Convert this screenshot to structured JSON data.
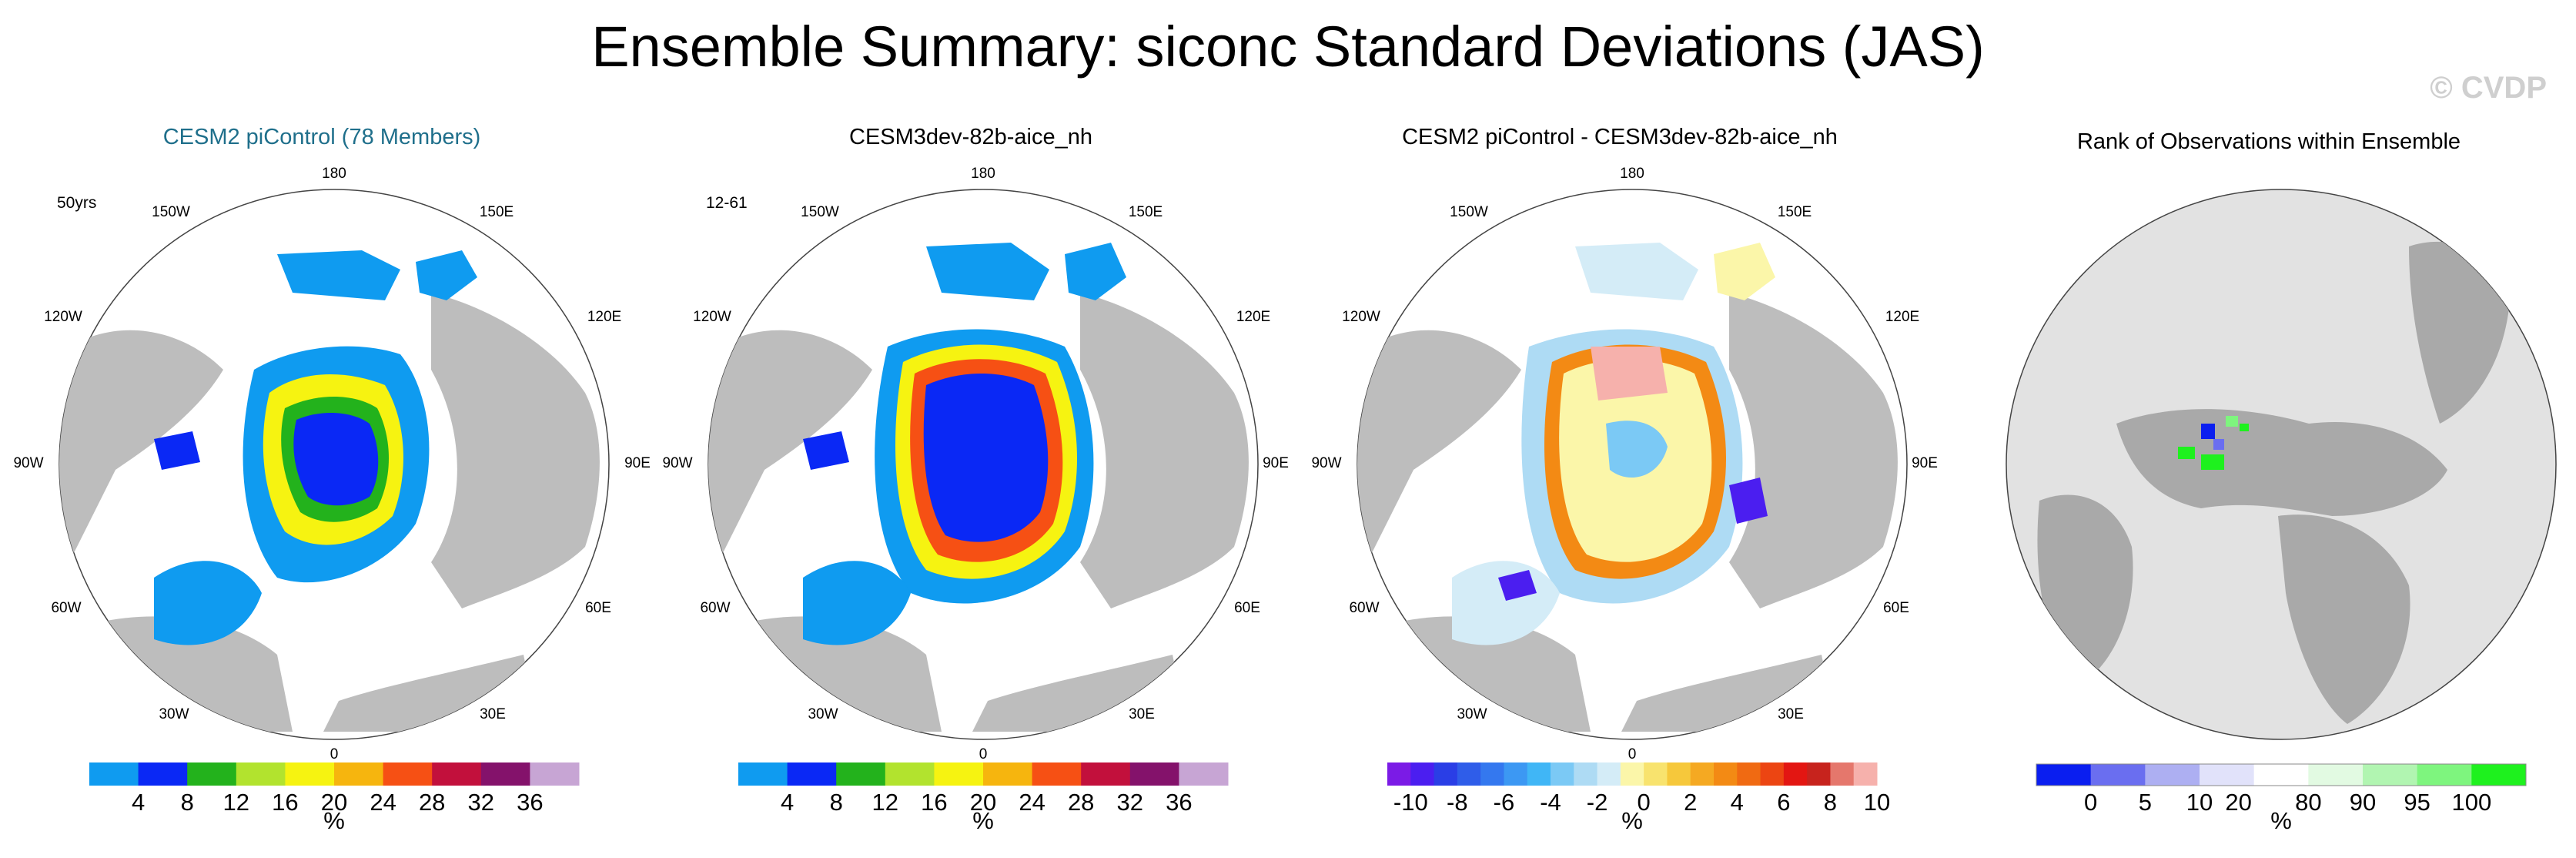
{
  "title": "Ensemble Summary: siconc Standard Deviations (JAS)",
  "watermark": "© CVDP",
  "lon_labels": {
    "l180": "180",
    "l150w": "150W",
    "l150e": "150E",
    "l120w": "120W",
    "l120e": "120E",
    "l90w": "90W",
    "l90e": "90E",
    "l60w": "60W",
    "l60e": "60E",
    "l30w": "30W",
    "l30e": "30E",
    "l0": "0"
  },
  "chart_data": [
    {
      "type": "heatmap",
      "title": "CESM2 piControl (78 Members)",
      "period": "50yrs",
      "unit": "%",
      "colorbar": {
        "colors": [
          "#0f9bf0",
          "#0a28f5",
          "#23b21c",
          "#b2e32e",
          "#f6f311",
          "#f6b50e",
          "#f65014",
          "#c2103c",
          "#84126b",
          "#c7a5d4"
        ],
        "tick_labels": [
          "4",
          "8",
          "12",
          "16",
          "20",
          "24",
          "28",
          "32",
          "36"
        ]
      }
    },
    {
      "type": "heatmap",
      "title": "CESM3dev-82b-aice_nh",
      "period": "12-61",
      "unit": "%",
      "colorbar": {
        "colors": [
          "#0f9bf0",
          "#0a28f5",
          "#23b21c",
          "#b2e32e",
          "#f6f311",
          "#f6b50e",
          "#f65014",
          "#c2103c",
          "#84126b",
          "#c7a5d4"
        ],
        "tick_labels": [
          "4",
          "8",
          "12",
          "16",
          "20",
          "24",
          "28",
          "32",
          "36"
        ]
      }
    },
    {
      "type": "heatmap",
      "title": "CESM2 piControl - CESM3dev-82b-aice_nh",
      "period": "",
      "unit": "%",
      "colorbar": {
        "colors": [
          "#7b1be6",
          "#4b1ef0",
          "#2a3ee6",
          "#2f5de9",
          "#3478ef",
          "#3c98f3",
          "#40b6f6",
          "#7bc9f5",
          "#aedbf4",
          "#d4ecf7",
          "#fbf6a9",
          "#f8e36e",
          "#f6c83b",
          "#f5a922",
          "#f38a14",
          "#f06a12",
          "#ec4512",
          "#e31612",
          "#c7231d",
          "#e5776c",
          "#f6b1ac"
        ],
        "tick_labels": [
          "-10",
          "-8",
          "-6",
          "-4",
          "-2",
          "0",
          "2",
          "4",
          "6",
          "8",
          "10"
        ]
      }
    },
    {
      "type": "heatmap",
      "title": "Rank of Observations within Ensemble",
      "period": "",
      "unit": "%",
      "colorbar": {
        "colors": [
          "#0a1ef0",
          "#6a6ef0",
          "#adaff2",
          "#e1e2fa",
          "#ffffff",
          "#e2fae2",
          "#b1f5b1",
          "#7ef57e",
          "#1ef11e"
        ],
        "tick_labels": [
          "0",
          "5",
          "10",
          "20",
          "80",
          "90",
          "95",
          "100"
        ]
      }
    }
  ]
}
